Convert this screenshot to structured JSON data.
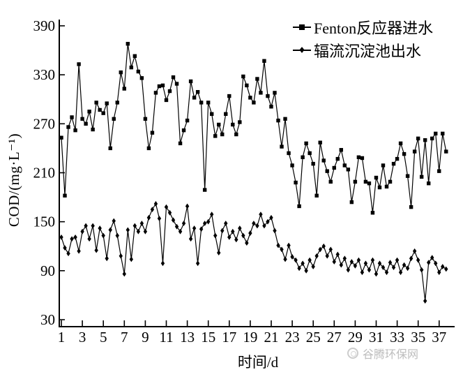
{
  "chart_data": {
    "type": "line",
    "title": "",
    "xlabel": "时间/d",
    "ylabel": "COD/(mg·L⁻¹)",
    "grid": false,
    "legend_position": "top-right",
    "color": "#000000",
    "xlim": [
      1,
      37.7
    ],
    "ylim": [
      30,
      390
    ],
    "x_ticks": [
      1,
      3,
      5,
      7,
      9,
      11,
      13,
      15,
      17,
      19,
      21,
      23,
      25,
      27,
      29,
      31,
      33,
      35,
      37
    ],
    "y_ticks": [
      30,
      90,
      150,
      210,
      270,
      330,
      390
    ],
    "x_start": 1,
    "x_step": 0.3333,
    "series": [
      {
        "name": "Fenton反应器进水",
        "marker": "square",
        "values": [
          253,
          182,
          266,
          278,
          262,
          343,
          276,
          270,
          285,
          263,
          296,
          287,
          283,
          295,
          240,
          276,
          296,
          333,
          313,
          368,
          339,
          353,
          334,
          326,
          276,
          240,
          259,
          308,
          316,
          317,
          299,
          310,
          327,
          319,
          246,
          262,
          274,
          322,
          302,
          309,
          296,
          189,
          296,
          282,
          255,
          269,
          257,
          282,
          304,
          269,
          257,
          272,
          328,
          317,
          302,
          296,
          325,
          308,
          347,
          304,
          291,
          308,
          274,
          242,
          276,
          234,
          219,
          198,
          169,
          229,
          246,
          234,
          221,
          182,
          247,
          225,
          212,
          199,
          216,
          227,
          238,
          219,
          214,
          174,
          199,
          229,
          228,
          199,
          197,
          161,
          204,
          192,
          219,
          193,
          199,
          221,
          227,
          246,
          233,
          206,
          168,
          236,
          252,
          205,
          250,
          197,
          252,
          258,
          212,
          258,
          236
        ]
      },
      {
        "name": "辐流沉淀池出水",
        "marker": "diamond",
        "values": [
          131,
          118,
          111,
          129,
          131,
          114,
          138,
          145,
          129,
          145,
          115,
          142,
          133,
          105,
          140,
          151,
          133,
          108,
          86,
          140,
          104,
          145,
          138,
          148,
          138,
          155,
          165,
          172,
          154,
          99,
          168,
          161,
          152,
          144,
          138,
          148,
          169,
          129,
          142,
          99,
          141,
          148,
          150,
          159,
          133,
          112,
          139,
          148,
          131,
          138,
          128,
          142,
          133,
          124,
          136,
          148,
          145,
          159,
          145,
          150,
          155,
          139,
          121,
          116,
          104,
          121,
          107,
          103,
          93,
          99,
          90,
          103,
          95,
          108,
          116,
          120,
          108,
          116,
          101,
          110,
          97,
          105,
          91,
          101,
          96,
          103,
          88,
          99,
          91,
          103,
          86,
          99,
          94,
          88,
          100,
          94,
          103,
          88,
          97,
          93,
          105,
          114,
          103,
          91,
          53,
          100,
          106,
          99,
          88,
          95,
          92
        ]
      }
    ]
  },
  "watermark": {
    "text": "谷腾环保网",
    "color": "#bdbdbd"
  }
}
